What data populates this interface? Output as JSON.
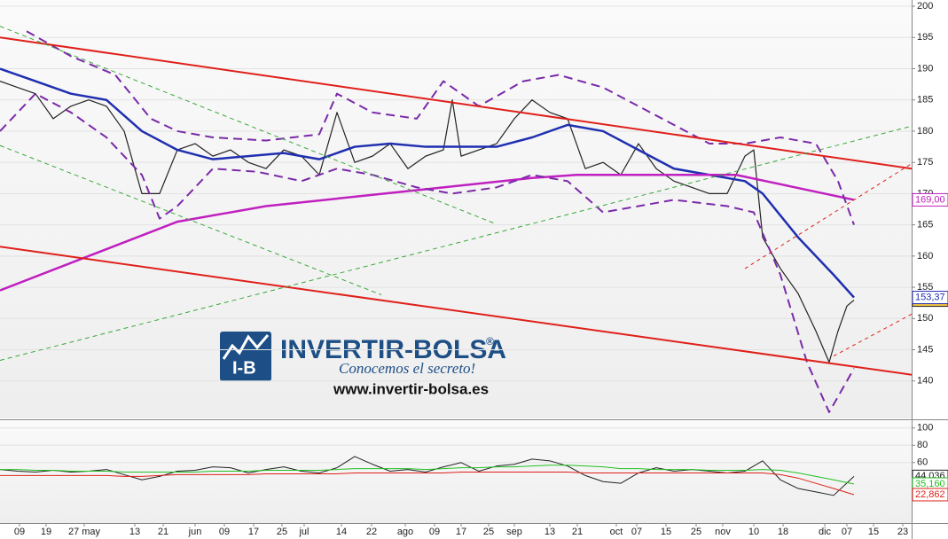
{
  "chart_data": [
    {
      "type": "line",
      "xlim": [
        0,
        205.6
      ],
      "ylim": [
        134.5,
        201
      ],
      "yticks": [
        140,
        145,
        150,
        155,
        160,
        165,
        170,
        175,
        180,
        185,
        190,
        195,
        200
      ],
      "xticks": [
        {
          "value": 4.4,
          "label": "09"
        },
        {
          "value": 10.4,
          "label": "19"
        },
        {
          "value": 19,
          "label": "27 may"
        },
        {
          "value": 30.4,
          "label": "13"
        },
        {
          "value": 36.8,
          "label": "21"
        },
        {
          "value": 44,
          "label": "jun"
        },
        {
          "value": 50.6,
          "label": "09"
        },
        {
          "value": 57.2,
          "label": "17"
        },
        {
          "value": 63.6,
          "label": "25"
        },
        {
          "value": 68.6,
          "label": "jul"
        },
        {
          "value": 77,
          "label": "14"
        },
        {
          "value": 83.8,
          "label": "22"
        },
        {
          "value": 91.4,
          "label": "ago"
        },
        {
          "value": 98,
          "label": "09"
        },
        {
          "value": 104,
          "label": "17"
        },
        {
          "value": 110.2,
          "label": "25"
        },
        {
          "value": 116,
          "label": "sep"
        },
        {
          "value": 124,
          "label": "13"
        },
        {
          "value": 130.2,
          "label": "21"
        },
        {
          "value": 139,
          "label": "oct"
        },
        {
          "value": 143.6,
          "label": "07"
        },
        {
          "value": 150.2,
          "label": "15"
        },
        {
          "value": 157,
          "label": "25"
        },
        {
          "value": 163,
          "label": "nov"
        },
        {
          "value": 170,
          "label": "10"
        },
        {
          "value": 176.6,
          "label": "18"
        },
        {
          "value": 186,
          "label": "dic"
        },
        {
          "value": 191,
          "label": "07"
        },
        {
          "value": 197,
          "label": "15"
        },
        {
          "value": 203.6,
          "label": "23"
        }
      ],
      "series": [
        {
          "color": "#222222",
          "width": 1.2,
          "last_label": "152,94",
          "tag_color": "#f5c542",
          "x": [
            0,
            4,
            8,
            12,
            16,
            20,
            24,
            28,
            32,
            36,
            40,
            44,
            48,
            52,
            56,
            60,
            64,
            68,
            72,
            76,
            80,
            84,
            88,
            92,
            96,
            100,
            102,
            104,
            108,
            112,
            116,
            120,
            124,
            128,
            132,
            136,
            140,
            144,
            148,
            152,
            156,
            160,
            164,
            168,
            170,
            172,
            176,
            180,
            184,
            187,
            189,
            191,
            192.6
          ],
          "values": [
            188,
            187,
            186,
            182,
            184,
            185,
            184,
            180,
            170,
            170,
            177,
            178,
            176,
            177,
            175,
            174,
            177,
            176,
            173,
            183,
            175,
            176,
            178,
            174,
            176,
            177,
            185,
            176,
            177,
            178,
            182,
            185,
            183,
            182,
            174,
            175,
            173,
            178,
            174,
            172,
            171,
            170,
            170,
            176,
            177,
            163,
            158,
            154,
            148,
            143,
            148,
            152,
            152.94
          ]
        },
        {
          "color": "#1f2fb0",
          "width": 2.5,
          "last_label": "153,37",
          "tag_color": "#ffffff",
          "x": [
            0,
            8,
            16,
            24,
            32,
            40,
            48,
            56,
            64,
            72,
            80,
            88,
            96,
            104,
            112,
            120,
            128,
            136,
            144,
            152,
            160,
            168,
            172,
            180,
            188,
            192.6
          ],
          "values": [
            190,
            188,
            186,
            185,
            180,
            177,
            175.5,
            176,
            176.5,
            175.5,
            177.5,
            178,
            177.5,
            177.5,
            177.5,
            179,
            181,
            180,
            177,
            174,
            173,
            172,
            170,
            163,
            157,
            153.37
          ]
        },
        {
          "color": "#c020c0",
          "width": 2.5,
          "last_label": "169,00",
          "tag_color": "#ffffff",
          "x": [
            0,
            20,
            40,
            60,
            80,
            100,
            120,
            130,
            150,
            166,
            176,
            192.6
          ],
          "values": [
            154.5,
            160,
            165.5,
            168,
            169.5,
            171,
            172.5,
            173,
            173,
            173,
            171.5,
            169
          ]
        },
        {
          "color": "#7a2aa8",
          "width": 2,
          "dash": "10 6",
          "x": [
            6,
            16,
            26,
            34,
            40,
            48,
            60,
            72,
            76,
            84,
            94,
            100,
            108,
            118,
            126,
            136,
            144,
            152,
            160,
            168,
            176,
            184,
            189,
            192.6
          ],
          "values": [
            196,
            192,
            189,
            182,
            180,
            179,
            178.5,
            179.5,
            186,
            183,
            182,
            188,
            184,
            188,
            189,
            187,
            184,
            181,
            178,
            178,
            179,
            178,
            172,
            165
          ]
        },
        {
          "color": "#7a2aa8",
          "width": 2,
          "dash": "10 6",
          "x": [
            0,
            8,
            16,
            24,
            32,
            36,
            40,
            48,
            58,
            68,
            76,
            84,
            94,
            102,
            112,
            120,
            128,
            136,
            144,
            152,
            164,
            170,
            176,
            182,
            187,
            192.6
          ],
          "values": [
            180,
            186,
            183,
            179,
            173,
            166,
            168,
            174,
            173.5,
            172,
            174,
            173,
            171,
            170,
            171,
            173,
            172,
            167,
            168,
            169,
            168,
            167,
            157,
            143,
            135,
            142
          ]
        },
        {
          "color": "#e0201a",
          "width": 2,
          "x": [
            0,
            205.6
          ],
          "values": [
            195,
            174
          ]
        },
        {
          "color": "#e0201a",
          "width": 2,
          "x": [
            0,
            205.6
          ],
          "values": [
            161.5,
            141
          ]
        },
        {
          "color": "#e0201a",
          "width": 1,
          "dash": "4 4",
          "x": [
            168,
            205.6
          ],
          "values": [
            158,
            174.8
          ]
        },
        {
          "color": "#e0201a",
          "width": 1,
          "dash": "4 4",
          "x": [
            188,
            205.6
          ],
          "values": [
            144,
            150.7
          ]
        },
        {
          "color": "#3aa83a",
          "width": 1,
          "dash": "5 4",
          "x": [
            0,
            205.6
          ],
          "values": [
            143.3,
            180.8
          ]
        },
        {
          "color": "#3aa83a",
          "width": 1,
          "dash": "5 4",
          "x": [
            0,
            112
          ],
          "values": [
            196.8,
            165.1
          ]
        },
        {
          "color": "#3aa83a",
          "width": 1,
          "dash": "5 4",
          "x": [
            0,
            86
          ],
          "values": [
            177.7,
            153.8
          ]
        }
      ]
    },
    {
      "type": "line",
      "xlim": [
        0,
        205.6
      ],
      "ylim": [
        -10,
        108
      ],
      "yticks": [
        60,
        80,
        100
      ],
      "series": [
        {
          "color": "#222222",
          "width": 1,
          "last_label": "44,036",
          "tag_color": "#ffffff",
          "x": [
            0,
            4,
            8,
            12,
            16,
            20,
            24,
            28,
            32,
            36,
            40,
            44,
            48,
            52,
            56,
            60,
            64,
            68,
            72,
            76,
            80,
            84,
            88,
            92,
            96,
            100,
            104,
            108,
            112,
            116,
            120,
            124,
            128,
            132,
            136,
            140,
            144,
            148,
            152,
            156,
            160,
            164,
            168,
            172,
            176,
            180,
            184,
            188,
            192.6
          ],
          "values": [
            52,
            50,
            49,
            51,
            49,
            50,
            52,
            46,
            40,
            44,
            50,
            51,
            55,
            54,
            48,
            52,
            55,
            50,
            48,
            54,
            67,
            58,
            50,
            52,
            49,
            55,
            60,
            50,
            56,
            58,
            64,
            62,
            56,
            45,
            38,
            36,
            48,
            54,
            50,
            52,
            50,
            48,
            50,
            62,
            40,
            30,
            26,
            22,
            44.036
          ]
        },
        {
          "color": "#22c022",
          "width": 1,
          "last_label": "35,160",
          "tag_color": "#ffffff",
          "x": [
            0,
            4,
            8,
            12,
            16,
            20,
            24,
            28,
            32,
            36,
            40,
            44,
            48,
            52,
            56,
            60,
            64,
            68,
            72,
            76,
            80,
            84,
            88,
            92,
            96,
            100,
            104,
            108,
            112,
            116,
            120,
            124,
            128,
            132,
            136,
            140,
            144,
            148,
            152,
            156,
            160,
            164,
            168,
            172,
            176,
            180,
            184,
            188,
            192.6
          ],
          "values": [
            52,
            52,
            51,
            51,
            50,
            50,
            50,
            49,
            49,
            49,
            49,
            49,
            50,
            50,
            50,
            51,
            51,
            51,
            51,
            52,
            53,
            53,
            53,
            53,
            52,
            53,
            54,
            54,
            55,
            55,
            56,
            57,
            57,
            56,
            55,
            53,
            53,
            52,
            52,
            52,
            51,
            51,
            51,
            52,
            51,
            48,
            44,
            40,
            35.16
          ]
        },
        {
          "color": "#e0201a",
          "width": 1,
          "last_label": "22,862",
          "tag_color": "#ffffff",
          "x": [
            0,
            4,
            8,
            12,
            16,
            20,
            24,
            28,
            32,
            36,
            40,
            44,
            48,
            52,
            56,
            60,
            64,
            68,
            72,
            76,
            80,
            84,
            88,
            92,
            96,
            100,
            104,
            108,
            112,
            116,
            120,
            124,
            128,
            132,
            136,
            140,
            144,
            148,
            152,
            156,
            160,
            164,
            168,
            172,
            176,
            180,
            184,
            188,
            192.6
          ],
          "values": [
            45,
            45,
            45,
            45,
            45,
            45,
            45,
            44,
            44,
            45,
            46,
            46,
            46,
            46,
            46,
            47,
            47,
            47,
            47,
            47,
            48,
            48,
            48,
            48,
            48,
            48,
            49,
            49,
            49,
            49,
            49,
            49,
            49,
            48,
            48,
            48,
            48,
            48,
            48,
            48,
            48,
            48,
            48,
            48,
            46,
            42,
            36,
            30,
            22.862
          ]
        }
      ]
    }
  ],
  "watermark": {
    "brand": "INVERTIR-BOLSA",
    "mark": "®",
    "slogan": "Conocemos el secreto!",
    "url": "www.invertir-bolsa.es"
  }
}
